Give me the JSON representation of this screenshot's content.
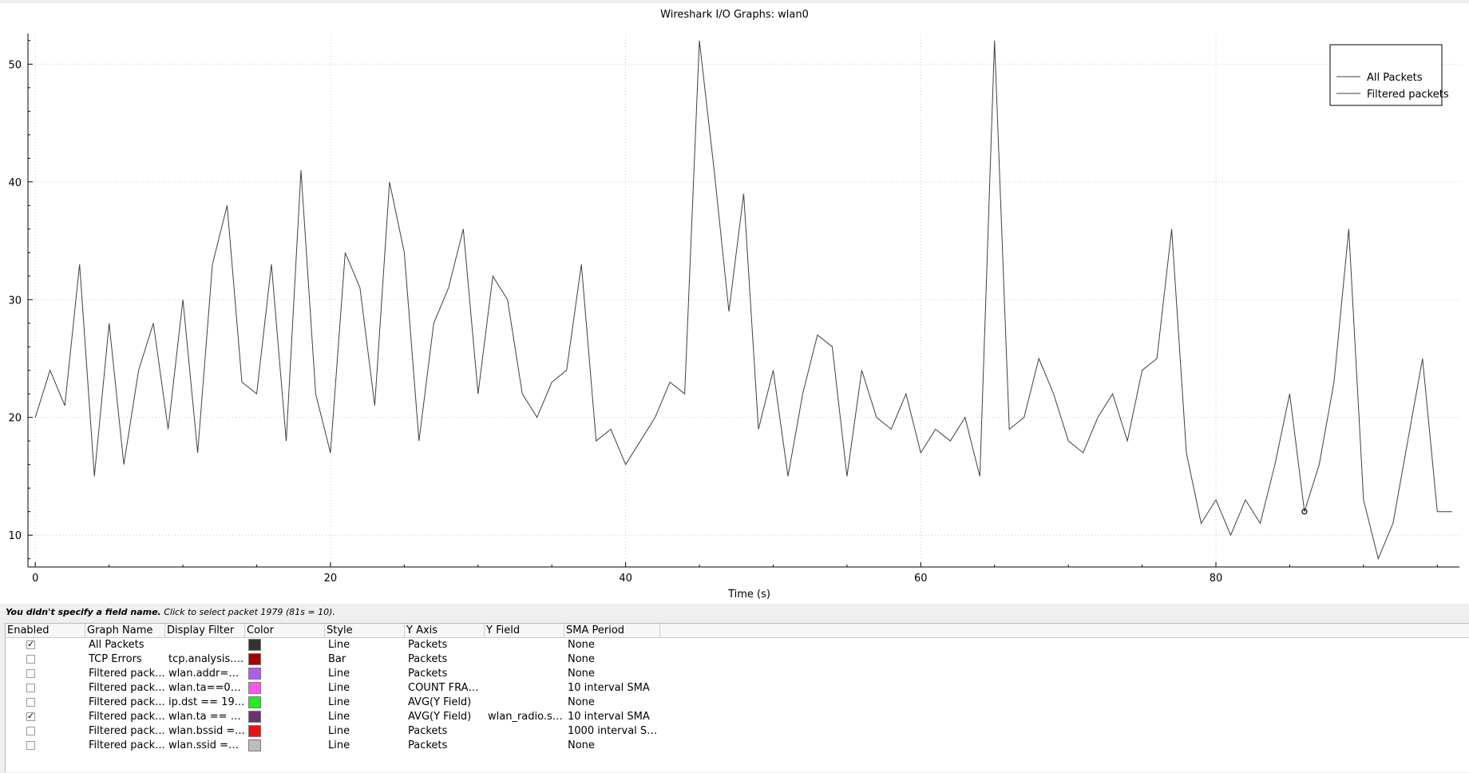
{
  "window": {
    "hint_bold": "You didn't specify a field name.",
    "hint_rest": " Click to select packet 1979 (81s = 10)."
  },
  "chart_data": {
    "type": "line",
    "title": "Wireshark I/O Graphs: wlan0",
    "xlabel": "Time (s)",
    "ylabel": "",
    "xlim": [
      -0.5,
      96.5
    ],
    "ylim": [
      7.3,
      52.6
    ],
    "x_ticks": [
      0,
      20,
      40,
      60,
      80
    ],
    "y_ticks": [
      10,
      20,
      30,
      40,
      50
    ],
    "grid": true,
    "legend": {
      "placement": "top-right",
      "entries": [
        "All Packets",
        "Filtered packets"
      ]
    },
    "series": [
      {
        "name": "All Packets",
        "color": "#404040",
        "x": [
          0,
          1,
          2,
          3,
          4,
          5,
          6,
          7,
          8,
          9,
          10,
          11,
          12,
          13,
          14,
          15,
          16,
          17,
          18,
          19,
          20,
          21,
          22,
          23,
          24,
          25,
          26,
          27,
          28,
          29,
          30,
          31,
          32,
          33,
          34,
          35,
          36,
          37,
          38,
          39,
          40,
          41,
          42,
          43,
          44,
          45,
          46,
          47,
          48,
          49,
          50,
          51,
          52,
          53,
          54,
          55,
          56,
          57,
          58,
          59,
          60,
          61,
          62,
          63,
          64,
          65,
          66,
          67,
          68,
          69,
          70,
          71,
          72,
          73,
          74,
          75,
          76,
          77,
          78,
          79,
          80,
          81,
          82,
          83,
          84,
          85,
          86,
          87,
          88,
          89,
          90,
          91,
          92,
          93,
          94,
          95,
          96
        ],
        "values": [
          20,
          24,
          21,
          33,
          15,
          28,
          16,
          24,
          28,
          19,
          30,
          17,
          33,
          38,
          23,
          22,
          33,
          18,
          41,
          22,
          17,
          34,
          31,
          21,
          40,
          34,
          18,
          28,
          31,
          36,
          22,
          32,
          30,
          22,
          20,
          23,
          24,
          33,
          18,
          19,
          16,
          18,
          20,
          23,
          22,
          52,
          41,
          29,
          39,
          19,
          24,
          15,
          22,
          27,
          26,
          15,
          24,
          20,
          19,
          22,
          17,
          19,
          18,
          20,
          15,
          52,
          19,
          20,
          25,
          22,
          18,
          17,
          20,
          22,
          18,
          24,
          25,
          36,
          17,
          11,
          13,
          10,
          13,
          11,
          16,
          22,
          12,
          16,
          23,
          36,
          13,
          8,
          11,
          18,
          25,
          12,
          12
        ]
      }
    ],
    "marker": {
      "x": 86,
      "y": 12
    }
  },
  "table": {
    "headers": [
      "Enabled",
      "Graph Name",
      "Display Filter",
      "Color",
      "Style",
      "Y Axis",
      "Y Field",
      "SMA Period"
    ],
    "rows": [
      {
        "enabled": true,
        "name": "All Packets",
        "filter": "",
        "color": "#333333",
        "style": "Line",
        "yaxis": "Packets",
        "yfield": "",
        "sma": "None"
      },
      {
        "enabled": false,
        "name": "TCP Errors",
        "filter": "tcp.analysis.f...",
        "color": "#a50000",
        "style": "Bar",
        "yaxis": "Packets",
        "yfield": "",
        "sma": "None"
      },
      {
        "enabled": false,
        "name": "Filtered pack...",
        "filter": "wlan.addr==...",
        "color": "#a95ef0",
        "style": "Line",
        "yaxis": "Packets",
        "yfield": "",
        "sma": "None"
      },
      {
        "enabled": false,
        "name": "Filtered pack...",
        "filter": "wlan.ta==00...",
        "color": "#ff55ee",
        "style": "Line",
        "yaxis": "COUNT FRAM...",
        "yfield": "",
        "sma": "10 interval SMA"
      },
      {
        "enabled": false,
        "name": "Filtered pack...",
        "filter": "ip.dst == 19...",
        "color": "#22ee22",
        "style": "Line",
        "yaxis": "AVG(Y Field)",
        "yfield": "",
        "sma": "None"
      },
      {
        "enabled": true,
        "name": "Filtered pack...",
        "filter": "wlan.ta == 0...",
        "color": "#6a3568",
        "style": "Line",
        "yaxis": "AVG(Y Field)",
        "yfield": "wlan_radio.si...",
        "sma": "10 interval SMA"
      },
      {
        "enabled": false,
        "name": "Filtered pack...",
        "filter": "wlan.bssid =...",
        "color": "#ee1111",
        "style": "Line",
        "yaxis": "Packets",
        "yfield": "",
        "sma": "1000 interval SMA"
      },
      {
        "enabled": false,
        "name": "Filtered pack...",
        "filter": "wlan.ssid ==...",
        "color": "#bdbdbd",
        "style": "Line",
        "yaxis": "Packets",
        "yfield": "",
        "sma": "None"
      }
    ]
  }
}
